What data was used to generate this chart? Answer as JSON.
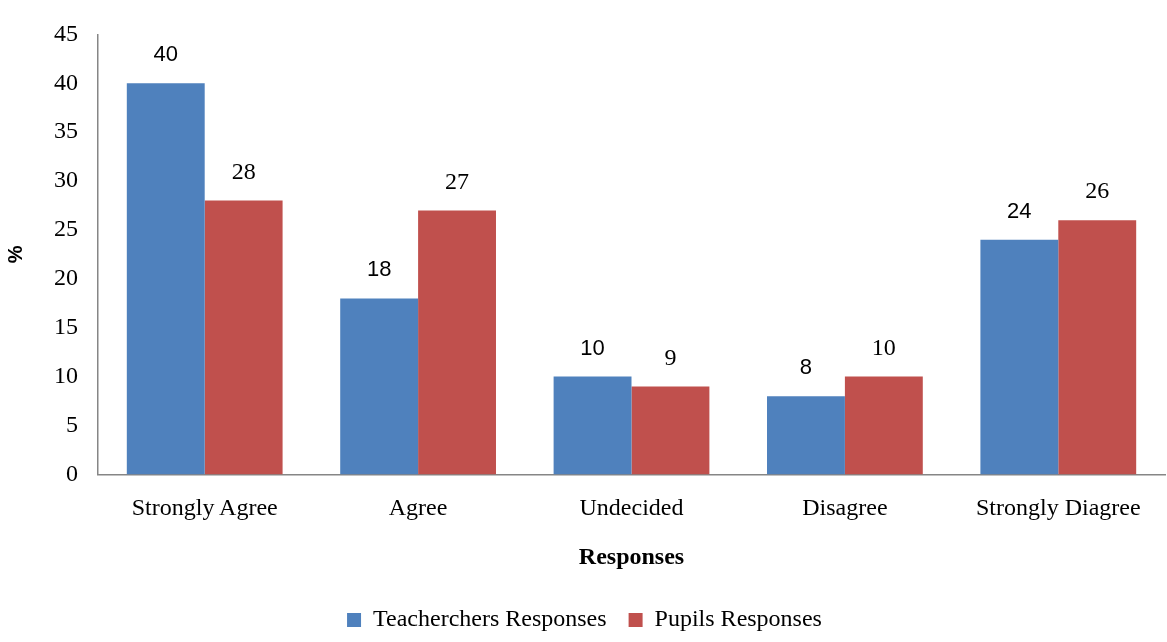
{
  "chart_data": {
    "type": "bar",
    "xlabel": "Responses",
    "ylabel": "%",
    "categories": [
      "Strongly Agree",
      "Agree",
      "Undecided",
      "Disagree",
      "Strongly Diagree"
    ],
    "series": [
      {
        "name": "Teacherchers Responses",
        "color": "#4f81bd",
        "values": [
          40,
          18,
          10,
          8,
          24
        ]
      },
      {
        "name": "Pupils Responses",
        "color": "#c0504d",
        "values": [
          28,
          27,
          9,
          10,
          26
        ]
      }
    ],
    "ylim": [
      0,
      45
    ],
    "yticks": [
      0,
      5,
      10,
      15,
      20,
      25,
      30,
      35,
      40,
      45
    ],
    "grid": false,
    "legend": "bottom",
    "data_labels": true
  }
}
